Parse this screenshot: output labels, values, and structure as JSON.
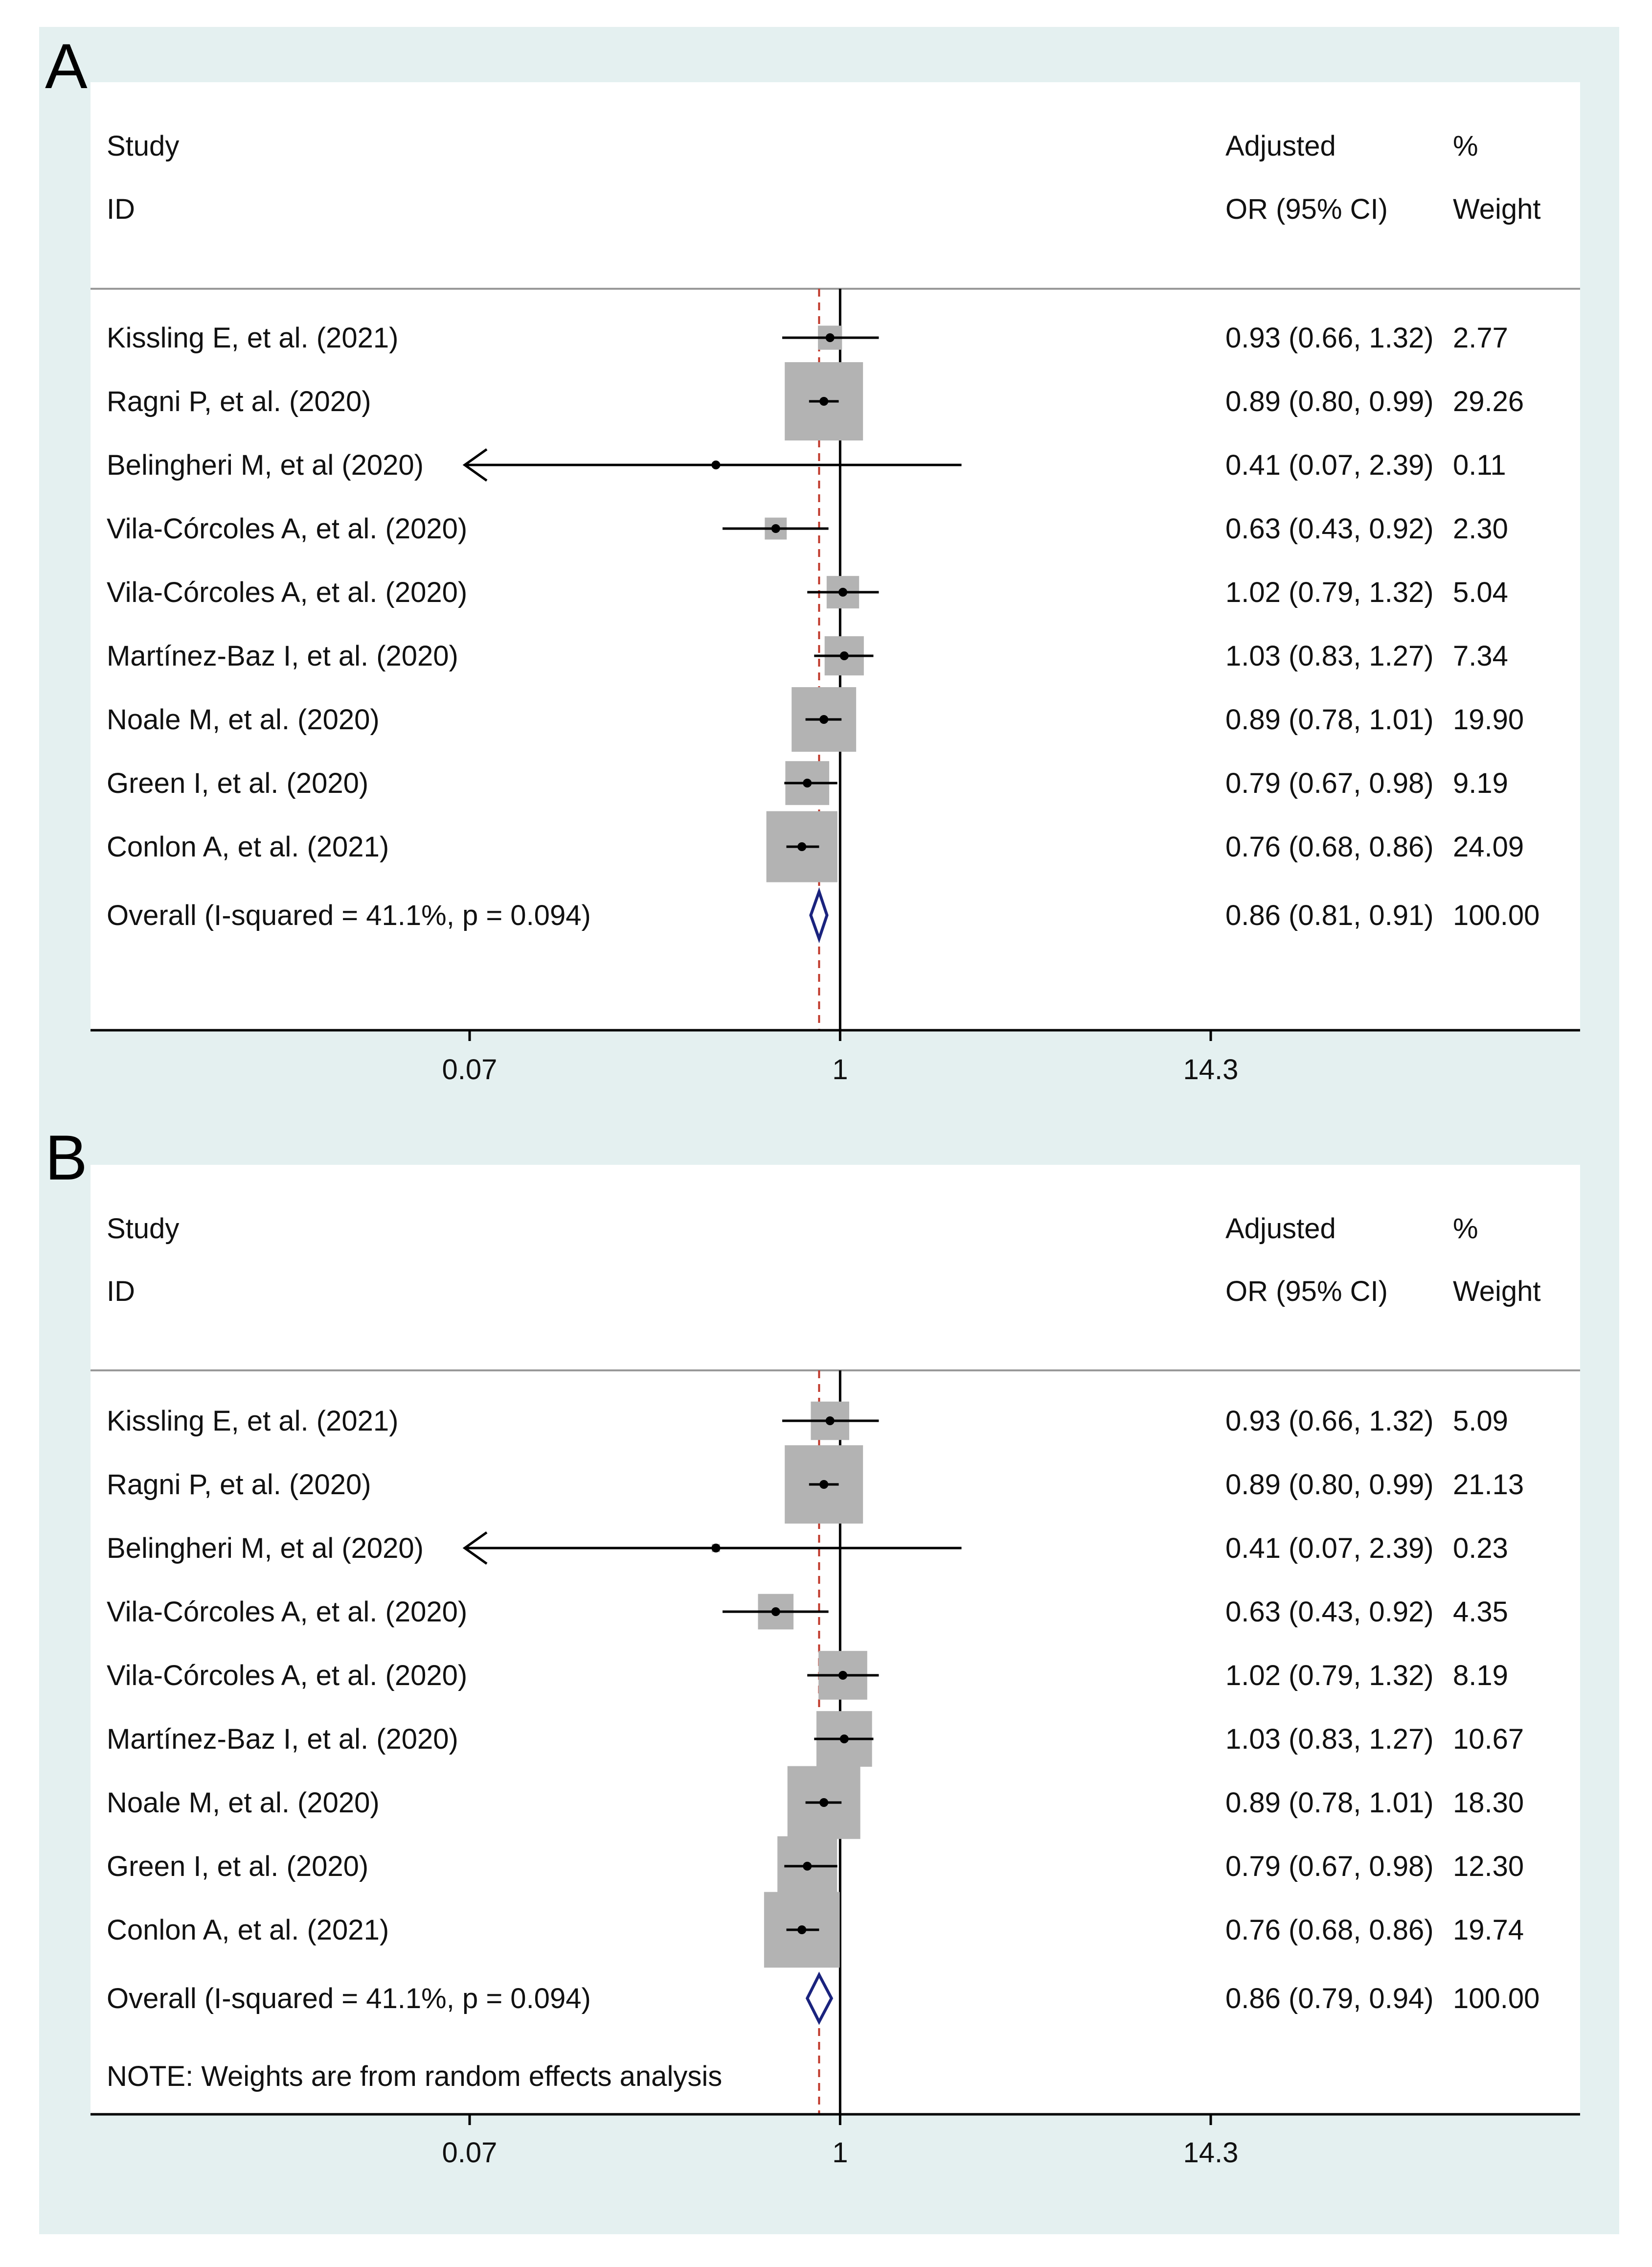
{
  "colors": {
    "frame": "#e4f0f0",
    "panel": "#ffffff",
    "weight_box": "#b3b3b3",
    "line": "#000000",
    "null_line": "#000000",
    "overall_line": "#c0392b",
    "diamond": "#1a237e"
  },
  "chart_data": [
    {
      "type": "forest",
      "panel_label": "A",
      "header": {
        "study_line1": "Study",
        "study_line2": "ID",
        "est_line1": "Adjusted",
        "est_line2": "OR (95% CI)",
        "weight_line1": "%",
        "weight_line2": "Weight"
      },
      "x_scale": "log",
      "xlim": [
        0.07,
        14.3
      ],
      "ticks": [
        0.07,
        1,
        14.3
      ],
      "tick_labels": [
        "0.07",
        "1",
        "14.3"
      ],
      "studies": [
        {
          "label": "Kissling E, et al. (2021)",
          "or": 0.93,
          "lo": 0.66,
          "hi": 1.32,
          "estimate": "0.93 (0.66, 1.32)",
          "weight": 2.77,
          "weight_label": "2.77"
        },
        {
          "label": "Ragni P, et al. (2020)",
          "or": 0.89,
          "lo": 0.8,
          "hi": 0.99,
          "estimate": "0.89 (0.80, 0.99)",
          "weight": 29.26,
          "weight_label": "29.26"
        },
        {
          "label": "Belingheri M, et al (2020)",
          "or": 0.41,
          "lo": 0.07,
          "hi": 2.39,
          "estimate": "0.41 (0.07, 2.39)",
          "weight": 0.11,
          "weight_label": "0.11",
          "arrow_left": true
        },
        {
          "label": "Vila-Córcoles A, et al. (2020)",
          "or": 0.63,
          "lo": 0.43,
          "hi": 0.92,
          "estimate": "0.63 (0.43, 0.92)",
          "weight": 2.3,
          "weight_label": "2.30"
        },
        {
          "label": "Vila-Córcoles A, et al. (2020)",
          "or": 1.02,
          "lo": 0.79,
          "hi": 1.32,
          "estimate": "1.02 (0.79, 1.32)",
          "weight": 5.04,
          "weight_label": "5.04"
        },
        {
          "label": "Martínez-Baz I, et al. (2020)",
          "or": 1.03,
          "lo": 0.83,
          "hi": 1.27,
          "estimate": "1.03 (0.83, 1.27)",
          "weight": 7.34,
          "weight_label": "7.34"
        },
        {
          "label": "Noale M, et al. (2020)",
          "or": 0.89,
          "lo": 0.78,
          "hi": 1.01,
          "estimate": "0.89 (0.78, 1.01)",
          "weight": 19.9,
          "weight_label": "19.90"
        },
        {
          "label": "Green I, et al. (2020)",
          "or": 0.79,
          "lo": 0.67,
          "hi": 0.98,
          "estimate": "0.79 (0.67, 0.98)",
          "weight": 9.19,
          "weight_label": "9.19"
        },
        {
          "label": "Conlon A, et al. (2021)",
          "or": 0.76,
          "lo": 0.68,
          "hi": 0.86,
          "estimate": "0.76 (0.68, 0.86)",
          "weight": 24.09,
          "weight_label": "24.09"
        }
      ],
      "overall": {
        "label": "Overall  (I-squared = 41.1%, p = 0.094)",
        "or": 0.86,
        "lo": 0.81,
        "hi": 0.91,
        "estimate": "0.86 (0.81, 0.91)",
        "weight_label": "100.00"
      },
      "note": ""
    },
    {
      "type": "forest",
      "panel_label": "B",
      "header": {
        "study_line1": "Study",
        "study_line2": "ID",
        "est_line1": "Adjusted",
        "est_line2": "OR (95% CI)",
        "weight_line1": "%",
        "weight_line2": "Weight"
      },
      "x_scale": "log",
      "xlim": [
        0.07,
        14.3
      ],
      "ticks": [
        0.07,
        1,
        14.3
      ],
      "tick_labels": [
        "0.07",
        "1",
        "14.3"
      ],
      "studies": [
        {
          "label": "Kissling E, et al. (2021)",
          "or": 0.93,
          "lo": 0.66,
          "hi": 1.32,
          "estimate": "0.93 (0.66, 1.32)",
          "weight": 5.09,
          "weight_label": "5.09"
        },
        {
          "label": "Ragni P, et al. (2020)",
          "or": 0.89,
          "lo": 0.8,
          "hi": 0.99,
          "estimate": "0.89 (0.80, 0.99)",
          "weight": 21.13,
          "weight_label": "21.13"
        },
        {
          "label": "Belingheri M, et al (2020)",
          "or": 0.41,
          "lo": 0.07,
          "hi": 2.39,
          "estimate": "0.41 (0.07, 2.39)",
          "weight": 0.23,
          "weight_label": "0.23",
          "arrow_left": true
        },
        {
          "label": "Vila-Córcoles A, et al. (2020)",
          "or": 0.63,
          "lo": 0.43,
          "hi": 0.92,
          "estimate": "0.63 (0.43, 0.92)",
          "weight": 4.35,
          "weight_label": "4.35"
        },
        {
          "label": "Vila-Córcoles A, et al. (2020)",
          "or": 1.02,
          "lo": 0.79,
          "hi": 1.32,
          "estimate": "1.02 (0.79, 1.32)",
          "weight": 8.19,
          "weight_label": "8.19"
        },
        {
          "label": "Martínez-Baz I, et al. (2020)",
          "or": 1.03,
          "lo": 0.83,
          "hi": 1.27,
          "estimate": "1.03 (0.83, 1.27)",
          "weight": 10.67,
          "weight_label": "10.67"
        },
        {
          "label": "Noale M, et al. (2020)",
          "or": 0.89,
          "lo": 0.78,
          "hi": 1.01,
          "estimate": "0.89 (0.78, 1.01)",
          "weight": 18.3,
          "weight_label": "18.30"
        },
        {
          "label": "Green I, et al. (2020)",
          "or": 0.79,
          "lo": 0.67,
          "hi": 0.98,
          "estimate": "0.79 (0.67, 0.98)",
          "weight": 12.3,
          "weight_label": "12.30"
        },
        {
          "label": "Conlon A, et al. (2021)",
          "or": 0.76,
          "lo": 0.68,
          "hi": 0.86,
          "estimate": "0.76 (0.68, 0.86)",
          "weight": 19.74,
          "weight_label": "19.74"
        }
      ],
      "overall": {
        "label": "Overall  (I-squared = 41.1%, p = 0.094)",
        "or": 0.86,
        "lo": 0.79,
        "hi": 0.94,
        "estimate": "0.86 (0.79, 0.94)",
        "weight_label": "100.00"
      },
      "note": "NOTE: Weights are from random effects analysis"
    }
  ]
}
